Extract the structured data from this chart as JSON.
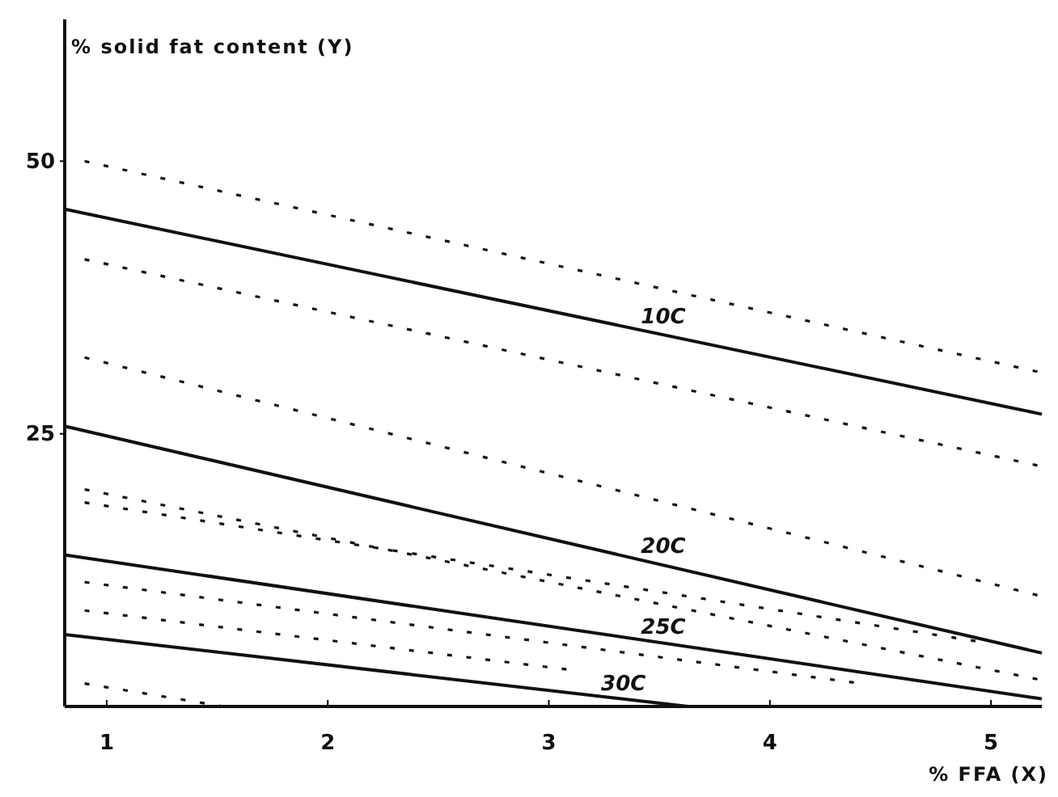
{
  "chart_data": {
    "type": "line",
    "xlabel": "% FFA (X)",
    "ylabel": "% solid fat content (Y)",
    "xlim": [
      0.81,
      5.23
    ],
    "xticks": [
      1,
      2,
      3,
      4,
      5
    ],
    "ylim": [
      0,
      63
    ],
    "yticks": [
      25,
      50
    ],
    "grid": false,
    "legend": false,
    "marker": "none",
    "series": [
      {
        "name": "10C",
        "color": "#111111",
        "line_style": "solid",
        "x": [
          0.81,
          5.23
        ],
        "values": [
          45.6,
          26.8
        ]
      },
      {
        "name": "20C",
        "color": "#111111",
        "line_style": "solid",
        "x": [
          0.81,
          5.23
        ],
        "values": [
          25.7,
          4.9
        ]
      },
      {
        "name": "25C",
        "color": "#111111",
        "line_style": "solid",
        "x": [
          0.81,
          5.23
        ],
        "values": [
          13.9,
          0.7
        ]
      },
      {
        "name": "30C",
        "color": "#111111",
        "line_style": "solid",
        "x": [
          0.81,
          3.63
        ],
        "values": [
          6.6,
          0
        ]
      },
      {
        "color": "#111111",
        "line_style": "dashed",
        "x": [
          0.9,
          5.21
        ],
        "values": [
          50,
          30.7
        ]
      },
      {
        "color": "#111111",
        "line_style": "dashed",
        "x": [
          0.9,
          5.21
        ],
        "values": [
          41,
          22.1
        ]
      },
      {
        "color": "#111111",
        "line_style": "dashed",
        "x": [
          0.9,
          5.21
        ],
        "values": [
          32,
          10.2
        ]
      },
      {
        "color": "#111111",
        "line_style": "dashed",
        "x": [
          0.9,
          5.21
        ],
        "values": [
          19.9,
          2.5
        ]
      },
      {
        "color": "#111111",
        "line_style": "dashed",
        "x": [
          0.9,
          4.93
        ],
        "values": [
          18.7,
          6
        ]
      },
      {
        "color": "#111111",
        "line_style": "dashed",
        "x": [
          0.9,
          4.38
        ],
        "values": [
          11.4,
          2.2
        ]
      },
      {
        "color": "#111111",
        "line_style": "dashed",
        "x": [
          0.9,
          3.08
        ],
        "values": [
          8.8,
          3.4
        ]
      },
      {
        "color": "#111111",
        "line_style": "dashed",
        "x": [
          0.9,
          1.53
        ],
        "values": [
          2.1,
          0
        ]
      }
    ]
  }
}
